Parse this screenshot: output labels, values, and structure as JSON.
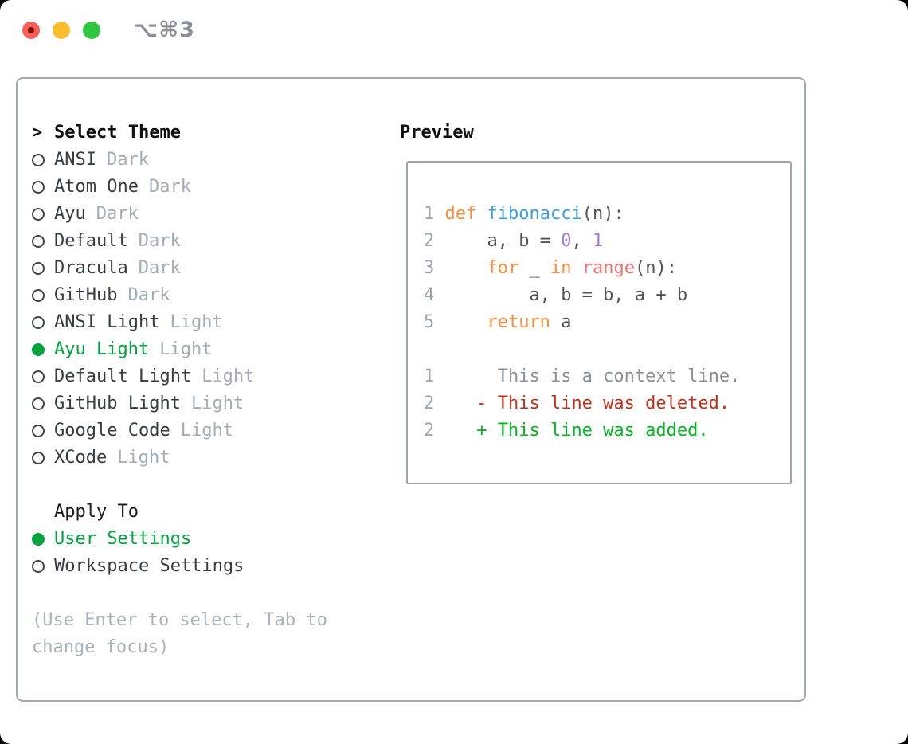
{
  "window": {
    "title": "⌥⌘3",
    "traffic_lights": {
      "close_color": "#f95f57",
      "close_inner_dot_color": "#7c1206",
      "minimize_color": "#f9bd2e",
      "maximize_color": "#30c73e"
    },
    "title_color": "#8a9097"
  },
  "theme_panel": {
    "header_caret": ">",
    "header": "Select Theme",
    "items": [
      {
        "name": "ANSI",
        "tag": "Dark",
        "selected": false
      },
      {
        "name": "Atom One",
        "tag": "Dark",
        "selected": false
      },
      {
        "name": "Ayu",
        "tag": "Dark",
        "selected": false
      },
      {
        "name": "Default",
        "tag": "Dark",
        "selected": false
      },
      {
        "name": "Dracula",
        "tag": "Dark",
        "selected": false
      },
      {
        "name": "GitHub",
        "tag": "Dark",
        "selected": false
      },
      {
        "name": "ANSI Light",
        "tag": "Light",
        "selected": false
      },
      {
        "name": "Ayu Light",
        "tag": "Light",
        "selected": true
      },
      {
        "name": "Default Light",
        "tag": "Light",
        "selected": false
      },
      {
        "name": "GitHub Light",
        "tag": "Light",
        "selected": false
      },
      {
        "name": "Google Code",
        "tag": "Light",
        "selected": false
      },
      {
        "name": "XCode",
        "tag": "Light",
        "selected": false
      }
    ],
    "apply_to": {
      "header": "Apply To",
      "options": [
        {
          "name": "User Settings",
          "selected": true
        },
        {
          "name": "Workspace Settings",
          "selected": false
        }
      ]
    },
    "hint": "(Use Enter to select, Tab to change focus)"
  },
  "preview": {
    "header": "Preview",
    "lines": [
      {
        "num": "1",
        "segs": [
          {
            "t": "def ",
            "c": "keyword"
          },
          {
            "t": "fibonacci",
            "c": "function"
          },
          {
            "t": "(n):",
            "c": "code"
          }
        ]
      },
      {
        "num": "2",
        "segs": [
          {
            "t": "    a, b = ",
            "c": "code"
          },
          {
            "t": "0",
            "c": "number"
          },
          {
            "t": ", ",
            "c": "code"
          },
          {
            "t": "1",
            "c": "number"
          }
        ]
      },
      {
        "num": "3",
        "segs": [
          {
            "t": "    ",
            "c": "code"
          },
          {
            "t": "for",
            "c": "keyword"
          },
          {
            "t": " _ ",
            "c": "code"
          },
          {
            "t": "in",
            "c": "keyword"
          },
          {
            "t": " ",
            "c": "code"
          },
          {
            "t": "range",
            "c": "builtin"
          },
          {
            "t": "(n):",
            "c": "code"
          }
        ]
      },
      {
        "num": "4",
        "segs": [
          {
            "t": "        a, b = b, a + b",
            "c": "code"
          }
        ]
      },
      {
        "num": "5",
        "segs": [
          {
            "t": "    ",
            "c": "code"
          },
          {
            "t": "return",
            "c": "keyword"
          },
          {
            "t": " a",
            "c": "code"
          }
        ]
      },
      {
        "num": "",
        "segs": []
      },
      {
        "num": "1",
        "segs": [
          {
            "t": "     This is a context line.",
            "c": "context"
          }
        ]
      },
      {
        "num": "2",
        "segs": [
          {
            "t": "   - This line was deleted.",
            "c": "deleted"
          }
        ]
      },
      {
        "num": "2",
        "segs": [
          {
            "t": "   + This line was added.",
            "c": "added"
          }
        ]
      }
    ]
  },
  "colors": {
    "keyword": "#fa8d3e",
    "function": "#399ee6",
    "builtin": "#f07171",
    "number": "#a37acc",
    "code": "#4d545c",
    "lineno": "#9ba4b0",
    "context": "#878f99",
    "deleted": "#c23018",
    "added": "#00b81f",
    "accent_green": "#00a33e",
    "item_text": "#363c45",
    "tag_text": "#a4acb9",
    "hint_text": "#a9b1bc",
    "ring": "#3f454e"
  }
}
